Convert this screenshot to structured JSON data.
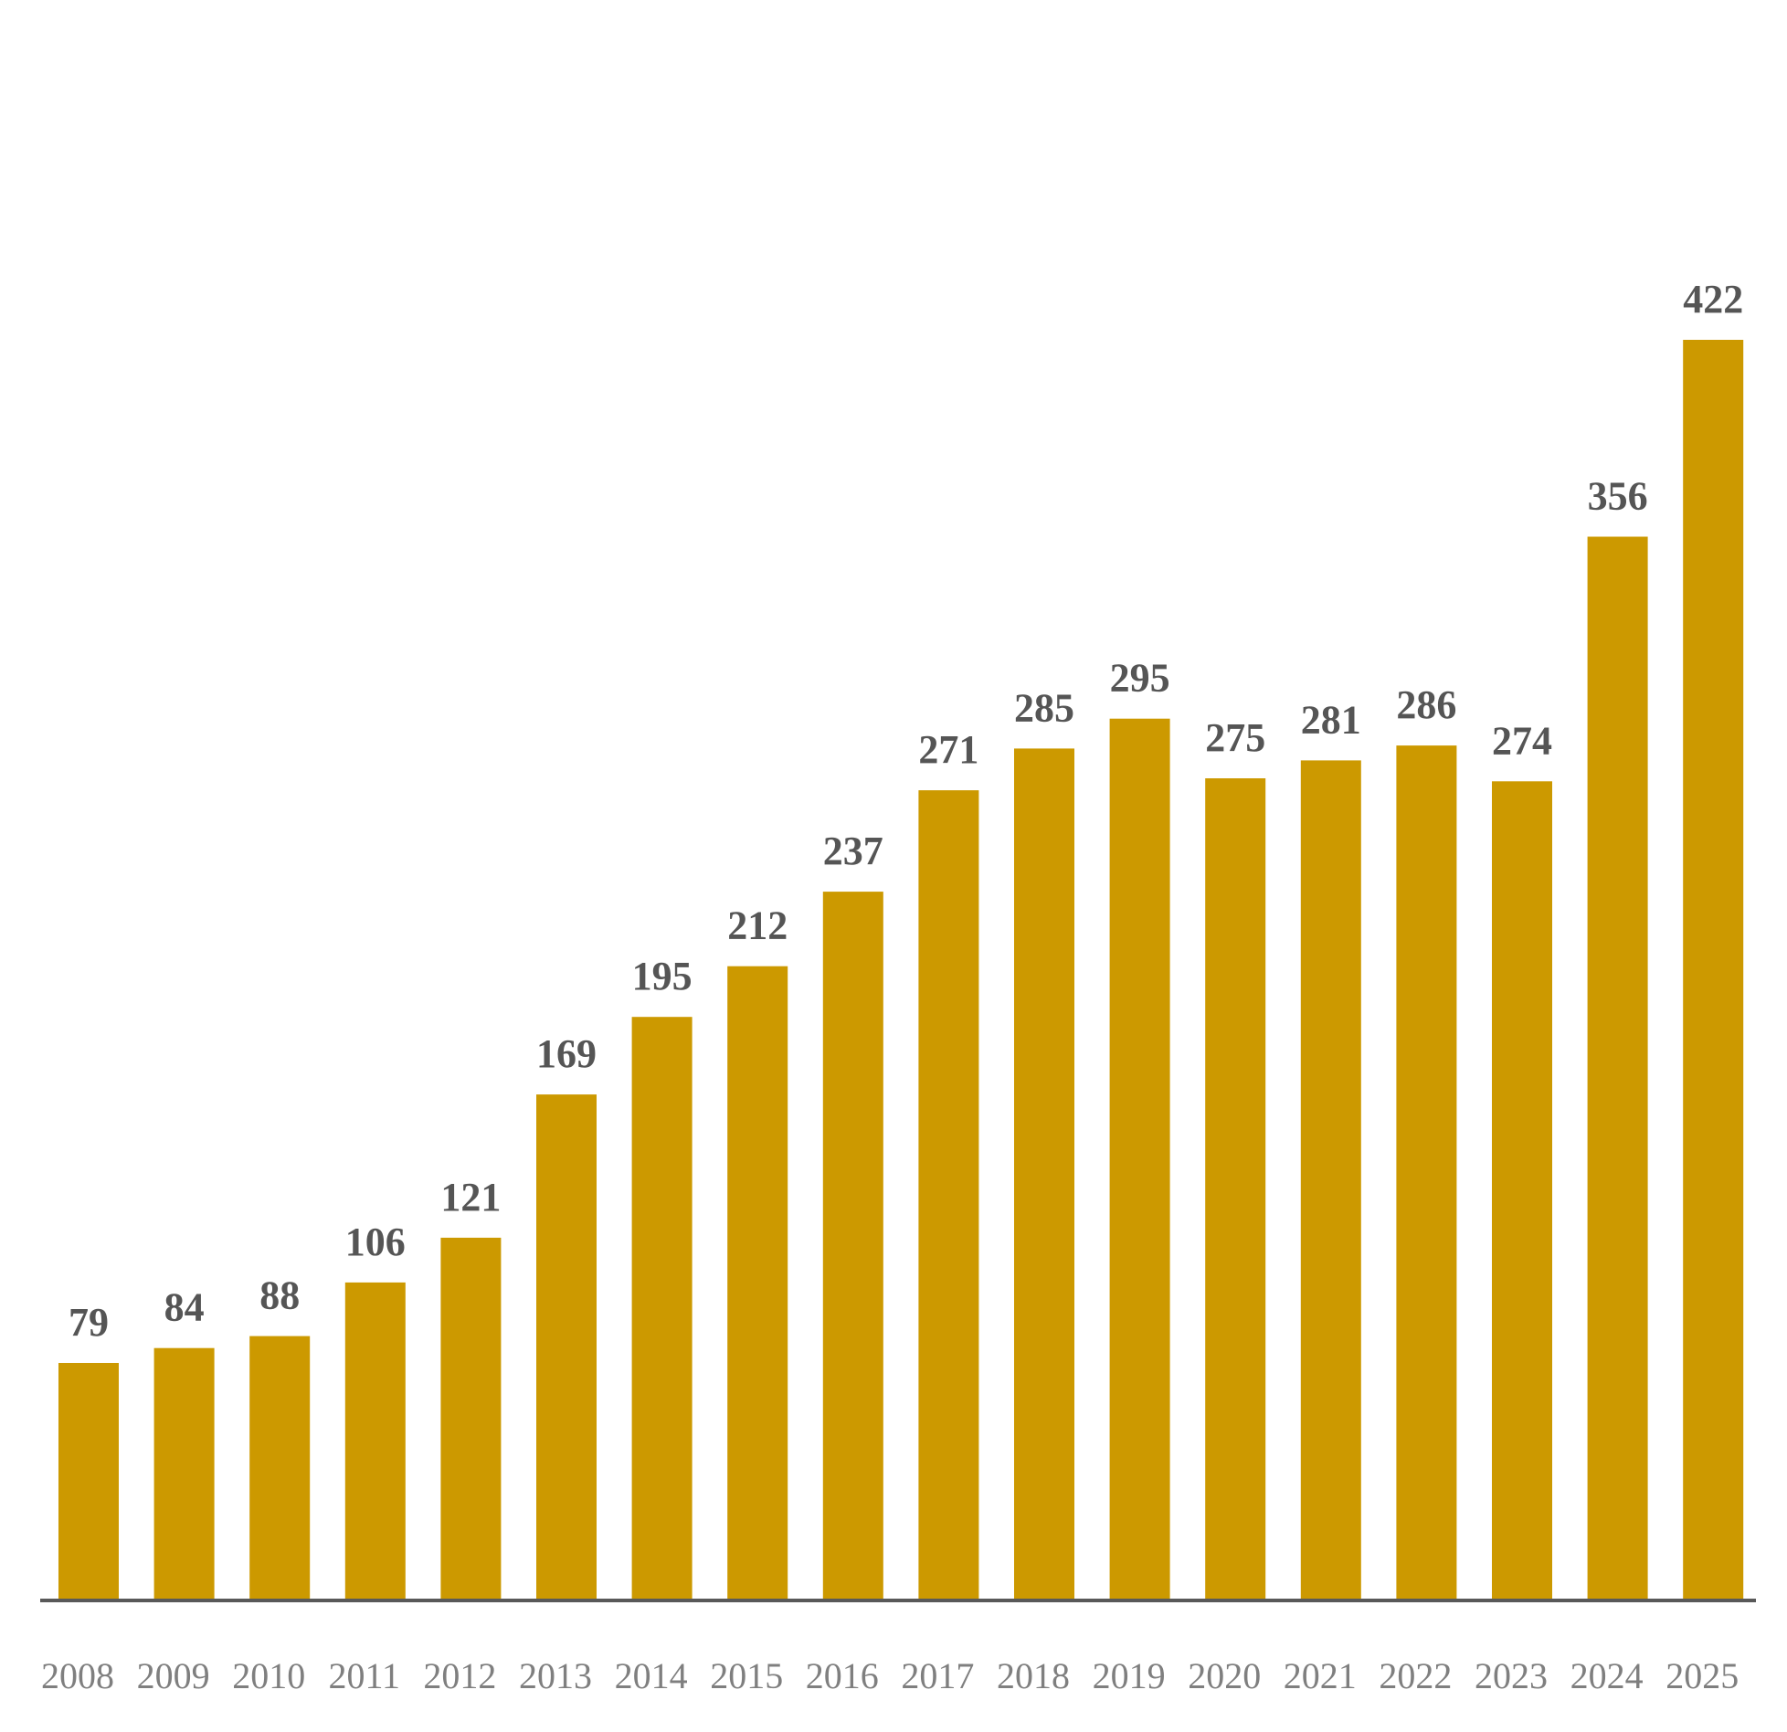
{
  "chart_data": {
    "type": "bar",
    "categories": [
      "2008",
      "2009",
      "2010",
      "2011",
      "2012",
      "2013",
      "2014",
      "2015",
      "2016",
      "2017",
      "2018",
      "2019",
      "2020",
      "2021",
      "2022",
      "2023",
      "2024",
      "2025"
    ],
    "values": [
      79,
      84,
      88,
      106,
      121,
      169,
      195,
      212,
      237,
      271,
      285,
      295,
      275,
      281,
      286,
      274,
      356,
      422
    ],
    "title": "",
    "xlabel": "",
    "ylabel": "",
    "ylim": [
      0,
      422
    ],
    "grid": false,
    "data_labels": true,
    "colors": {
      "bar": "#CC9900",
      "value_label": "#555555",
      "tick_label": "#7F7F7F",
      "axis": "#595959"
    }
  }
}
